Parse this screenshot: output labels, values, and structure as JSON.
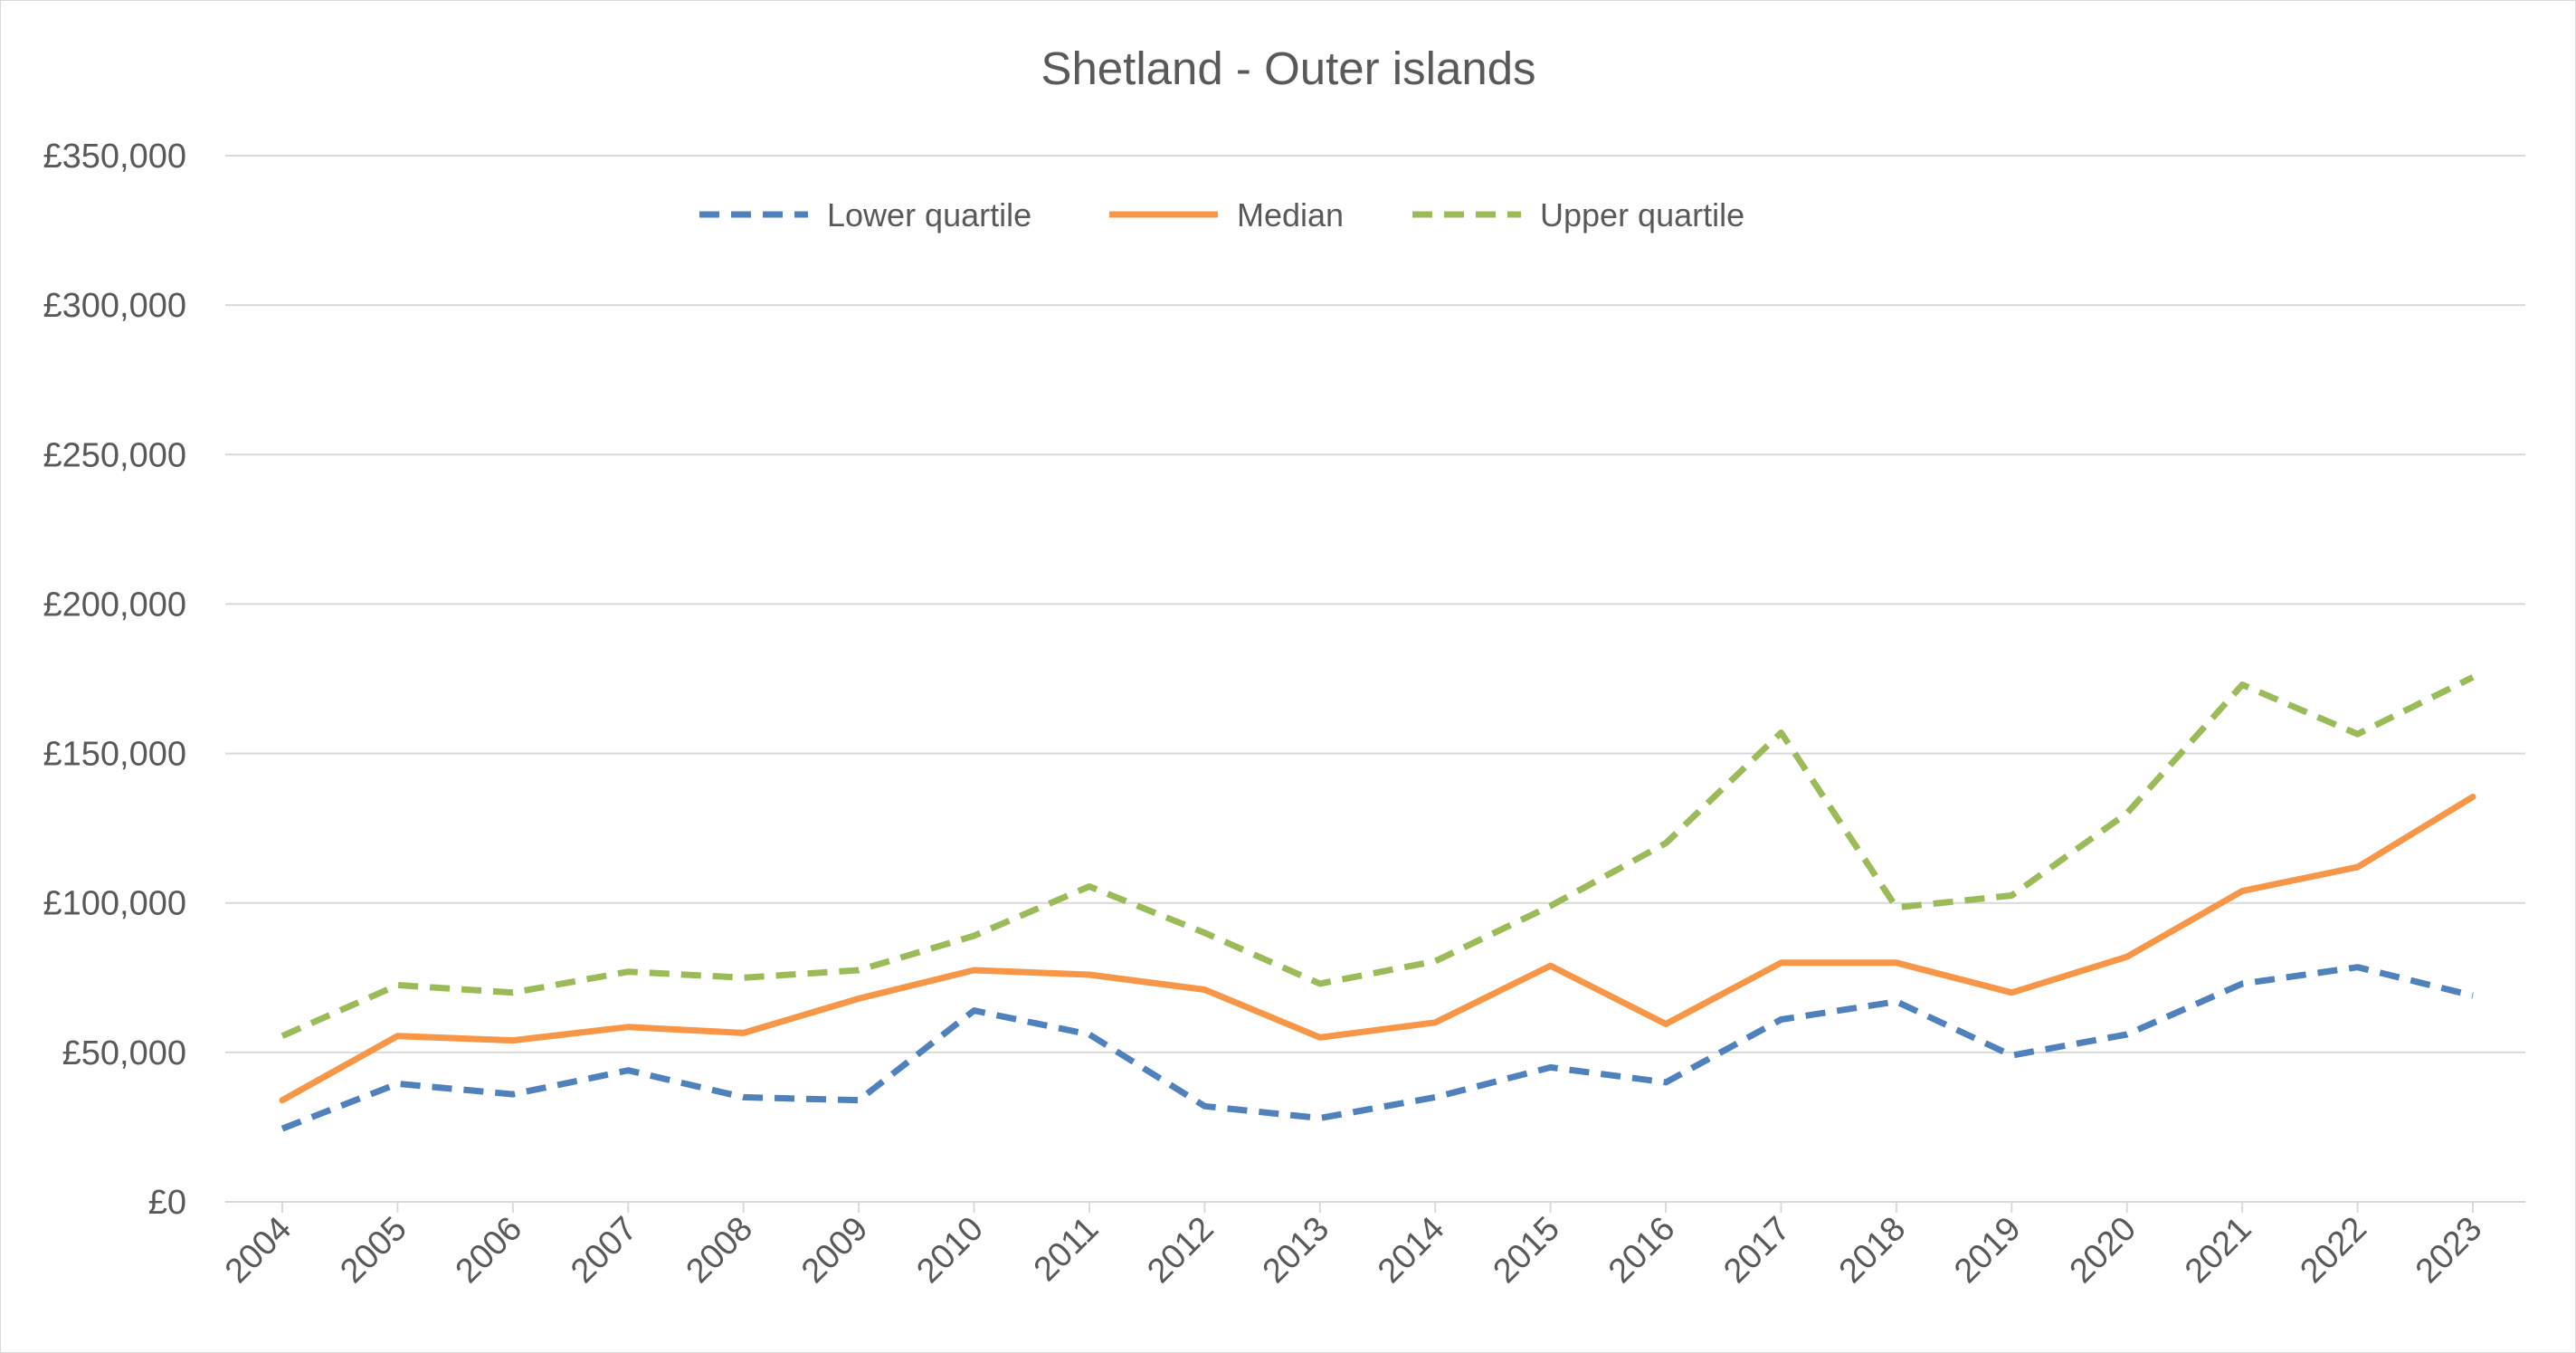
{
  "colors": {
    "lower_quartile": "#4f81bd",
    "median": "#f79646",
    "upper_quartile": "#9bbb59",
    "gridline": "#d9d9d9",
    "text": "#595959"
  },
  "chart_data": {
    "type": "line",
    "title": "Shetland - Outer islands",
    "xlabel": "",
    "ylabel": "",
    "x": [
      "2004",
      "2005",
      "2006",
      "2007",
      "2008",
      "2009",
      "2010",
      "2011",
      "2012",
      "2013",
      "2014",
      "2015",
      "2016",
      "2017",
      "2018",
      "2019",
      "2020",
      "2021",
      "2022",
      "2023"
    ],
    "ylim": [
      0,
      350000
    ],
    "yticks": [
      0,
      50000,
      100000,
      150000,
      200000,
      250000,
      300000,
      350000
    ],
    "ytick_labels": [
      "£0",
      "£50,000",
      "£100,000",
      "£150,000",
      "£200,000",
      "£250,000",
      "£300,000",
      "£350,000"
    ],
    "grid": true,
    "legend_position": "top-center",
    "series": [
      {
        "name": "Lower quartile",
        "style": "dashed",
        "color": "#4f81bd",
        "values": [
          24500,
          39500,
          36000,
          44000,
          35000,
          34000,
          64000,
          56000,
          32000,
          28000,
          35000,
          45000,
          40000,
          61000,
          67000,
          49000,
          56000,
          73000,
          78500,
          69000
        ]
      },
      {
        "name": "Median",
        "style": "solid",
        "color": "#f79646",
        "values": [
          34000,
          55500,
          54000,
          58500,
          56500,
          68000,
          77500,
          76000,
          71000,
          55000,
          60000,
          79000,
          59500,
          80000,
          80000,
          70000,
          82000,
          104000,
          112000,
          135500
        ]
      },
      {
        "name": "Upper quartile",
        "style": "dashed",
        "color": "#9bbb59",
        "values": [
          55500,
          72500,
          70000,
          77000,
          75000,
          77500,
          89000,
          105500,
          90000,
          73000,
          80500,
          99000,
          120000,
          157000,
          98500,
          102500,
          130000,
          173000,
          156500,
          175500
        ]
      }
    ]
  }
}
